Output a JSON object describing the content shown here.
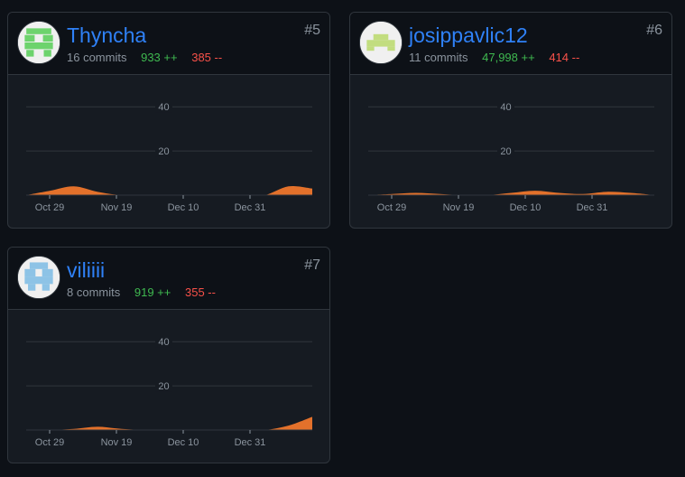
{
  "contributors": [
    {
      "username": "Thyncha",
      "rank": "#5",
      "commits": "16 commits",
      "additions": "933 ++",
      "deletions": "385 --",
      "avatar_color": "#6dd36d",
      "avatar_icon": "identicon-green-invader"
    },
    {
      "username": "josippavlic12",
      "rank": "#6",
      "commits": "11 commits",
      "additions": "47,998 ++",
      "deletions": "414 --",
      "avatar_color": "#c2dd7f",
      "avatar_icon": "identicon-lime-invader"
    },
    {
      "username": "viliiii",
      "rank": "#7",
      "commits": "8 commits",
      "additions": "919 ++",
      "deletions": "355 --",
      "avatar_color": "#8dc3e6",
      "avatar_icon": "identicon-blue-invader"
    }
  ],
  "colors": {
    "background": "#0d1117",
    "card": "#161b22",
    "border": "#30363d",
    "link": "#2f81f7",
    "additions": "#3fb950",
    "deletions": "#f85149",
    "area_fill": "#e3712b"
  },
  "chart_data": [
    {
      "type": "area",
      "title": "",
      "x_ticks": [
        "Oct 29",
        "Nov 19",
        "Dec 10",
        "Dec 31"
      ],
      "y_ticks": [
        20,
        40
      ],
      "ylim": [
        0,
        45
      ],
      "x": [
        "Oct 22",
        "Oct 29",
        "Nov 5",
        "Nov 12",
        "Nov 19",
        "Nov 26",
        "Dec 3",
        "Dec 10",
        "Dec 17",
        "Dec 24",
        "Dec 31",
        "Jan 7",
        "Jan 14"
      ],
      "values": [
        0,
        2,
        4,
        1.5,
        0,
        0,
        0,
        0,
        0,
        0,
        0,
        4,
        3
      ]
    },
    {
      "type": "area",
      "title": "",
      "x_ticks": [
        "Oct 29",
        "Nov 19",
        "Dec 10",
        "Dec 31"
      ],
      "y_ticks": [
        20,
        40
      ],
      "ylim": [
        0,
        45
      ],
      "x": [
        "Oct 22",
        "Oct 29",
        "Nov 5",
        "Nov 12",
        "Nov 19",
        "Nov 26",
        "Dec 3",
        "Dec 10",
        "Dec 17",
        "Dec 24",
        "Dec 31",
        "Jan 7",
        "Jan 14"
      ],
      "values": [
        0,
        0.5,
        1,
        0.5,
        0,
        0,
        1,
        2,
        1,
        0.5,
        1.5,
        1,
        0
      ]
    },
    {
      "type": "area",
      "title": "",
      "x_ticks": [
        "Oct 29",
        "Nov 19",
        "Dec 10",
        "Dec 31"
      ],
      "y_ticks": [
        20,
        40
      ],
      "ylim": [
        0,
        45
      ],
      "x": [
        "Oct 22",
        "Oct 29",
        "Nov 5",
        "Nov 12",
        "Nov 19",
        "Nov 26",
        "Dec 3",
        "Dec 10",
        "Dec 17",
        "Dec 24",
        "Dec 31",
        "Jan 7",
        "Jan 14"
      ],
      "values": [
        0,
        0,
        0.5,
        1.5,
        0.5,
        0,
        0,
        0,
        0,
        0,
        0,
        2,
        6
      ]
    }
  ]
}
